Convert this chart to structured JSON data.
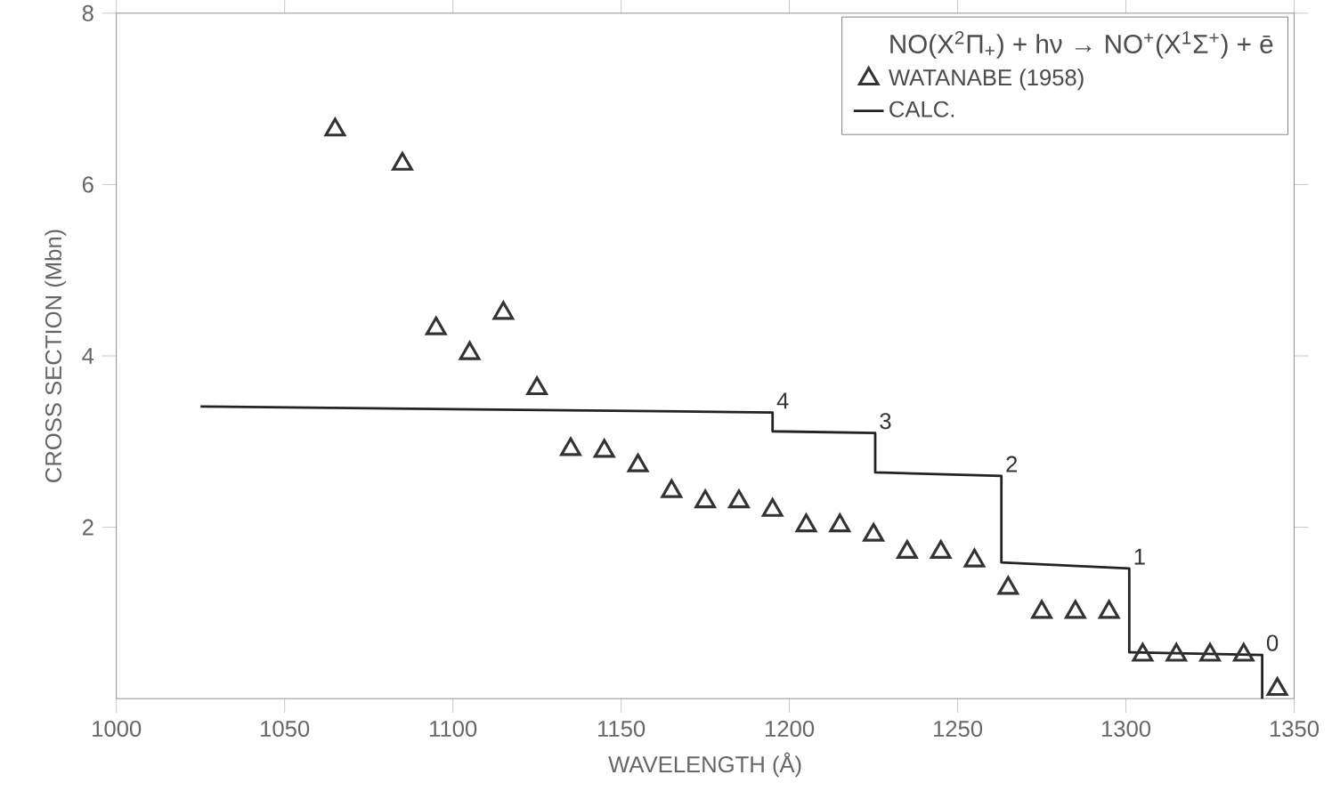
{
  "chart_data": {
    "type": "scatter",
    "xlabel": "WAVELENGTH (Å)",
    "ylabel": "CROSS SECTION (Mbn)",
    "legend_title": "NO(X$^{2}$Π$_{+}$) + hν → NO$^{+}$(X$^{1}$Σ$^{+}$) + ē",
    "xlim": [
      1000,
      1350
    ],
    "xticks": [
      1000,
      1050,
      1100,
      1150,
      1200,
      1250,
      1300,
      1350
    ],
    "ylim": [
      0,
      8
    ],
    "yticks": [
      2,
      4,
      6,
      8
    ],
    "legend": "top right",
    "series": [
      {
        "name": "WATANABE (1958)",
        "marker": "triangle",
        "color": "#333333",
        "x": [
          1065,
          1085,
          1095,
          1105,
          1115,
          1125,
          1135,
          1145,
          1155,
          1165,
          1175,
          1185,
          1195,
          1205,
          1215,
          1225,
          1235,
          1245,
          1255,
          1265,
          1275,
          1285,
          1295,
          1305,
          1315,
          1325,
          1335,
          1345
        ],
        "values": [
          6.64,
          6.24,
          4.32,
          4.03,
          4.5,
          3.62,
          2.91,
          2.89,
          2.72,
          2.42,
          2.3,
          2.3,
          2.2,
          2.02,
          2.02,
          1.91,
          1.71,
          1.71,
          1.61,
          1.29,
          1.01,
          1.01,
          1.01,
          0.51,
          0.51,
          0.51,
          0.51,
          0.11
        ]
      },
      {
        "name": "CALC.",
        "type": "line",
        "line_style": "solid",
        "color": "#222222",
        "x": [
          1025,
          1195,
          1195,
          1225.5,
          1225.5,
          1263,
          1263,
          1301,
          1301,
          1340.5,
          1340.5
        ],
        "values": [
          3.41,
          3.34,
          3.12,
          3.1,
          2.64,
          2.6,
          1.59,
          1.52,
          0.54,
          0.51,
          0
        ]
      }
    ],
    "annotations": [
      {
        "text": "4",
        "x": 1195,
        "y": 3.34
      },
      {
        "text": "3",
        "x": 1225.5,
        "y": 3.1
      },
      {
        "text": "2",
        "x": 1263,
        "y": 2.6
      },
      {
        "text": "1",
        "x": 1301,
        "y": 1.52
      },
      {
        "text": "0",
        "x": 1340.5,
        "y": 0.51
      }
    ]
  }
}
